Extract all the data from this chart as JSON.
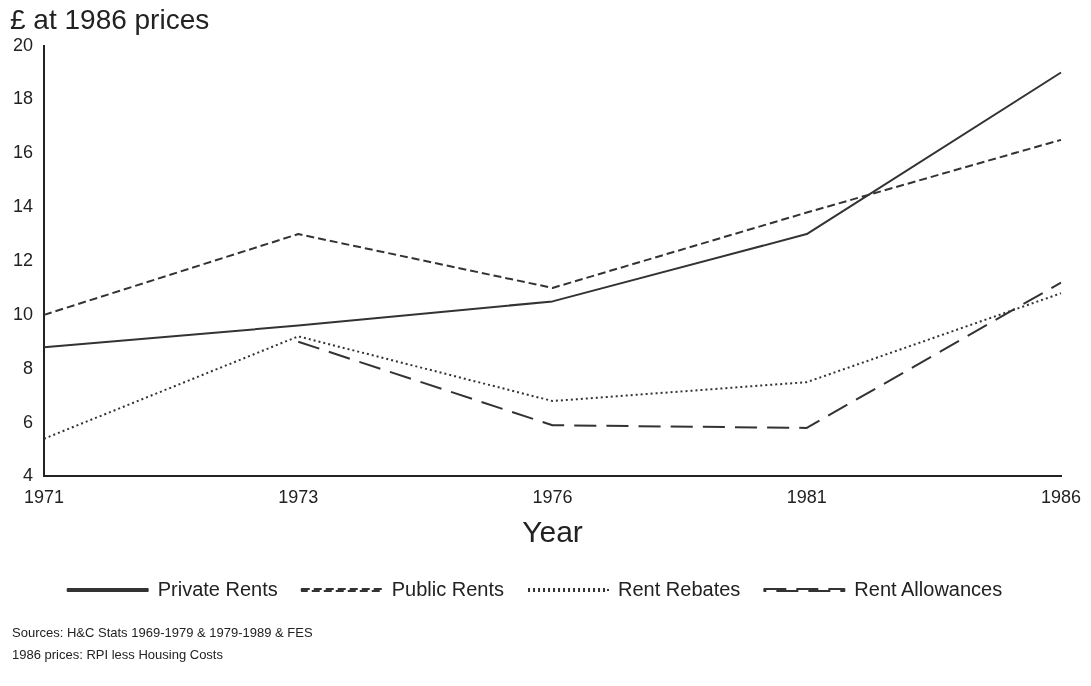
{
  "chart_data": {
    "type": "line",
    "ylabel": "£ at 1986 prices",
    "xlabel": "Year",
    "categories": [
      "1971",
      "1973",
      "1976",
      "1981",
      "1986"
    ],
    "series": [
      {
        "name": "Private Rents",
        "color": "#333333",
        "line_style": "solid",
        "values": [
          8.8,
          9.6,
          10.5,
          13.0,
          19.0
        ]
      },
      {
        "name": "Public Rents",
        "color": "#333333",
        "line_style": "dashed",
        "values": [
          10.0,
          13.0,
          11.0,
          13.8,
          16.5
        ]
      },
      {
        "name": "Rent Rebates",
        "color": "#333333",
        "line_style": "dotted",
        "values": [
          5.4,
          9.2,
          6.8,
          7.5,
          10.8
        ]
      },
      {
        "name": "Rent Allowances",
        "color": "#333333",
        "line_style": "longdash",
        "values": [
          null,
          9.0,
          5.9,
          5.8,
          11.2
        ]
      }
    ],
    "ylim": [
      4,
      20
    ],
    "yticks": [
      4,
      6,
      8,
      10,
      12,
      14,
      16,
      18,
      20
    ],
    "grid": false,
    "legend": "bottom",
    "marker": "none",
    "annotations": [
      "Sources: H&C Stats 1969-1979 & 1979-1989 & FES",
      "1986 prices: RPI less Housing Costs"
    ]
  }
}
